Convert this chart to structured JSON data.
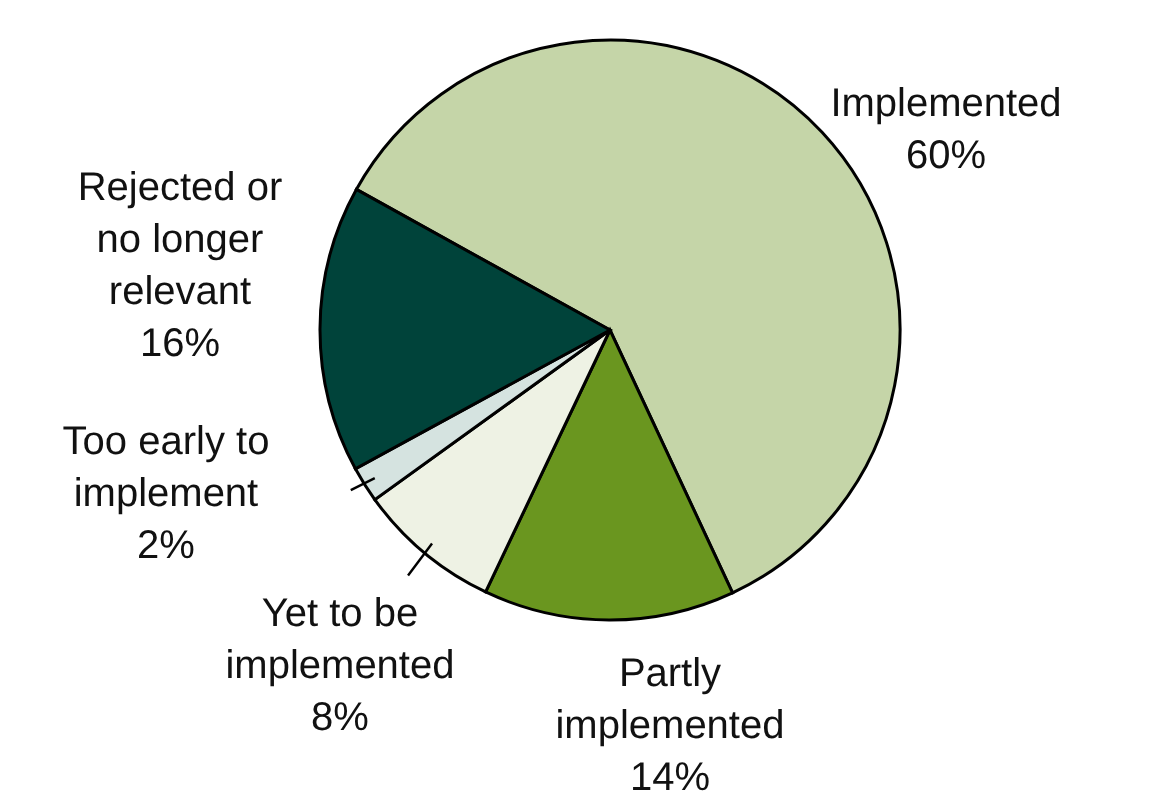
{
  "chart_data": {
    "type": "pie",
    "categories": [
      "Implemented",
      "Partly implemented",
      "Yet to be implemented",
      "Too early to implement",
      "Rejected or no longer relevant"
    ],
    "values": [
      60,
      14,
      8,
      2,
      16
    ],
    "colors": [
      "#c5d5a8",
      "#6a961f",
      "#eef2e4",
      "#d5e3e0",
      "#00433a"
    ],
    "value_labels": [
      "60%",
      "14%",
      "8%",
      "2%",
      "16%"
    ]
  }
}
